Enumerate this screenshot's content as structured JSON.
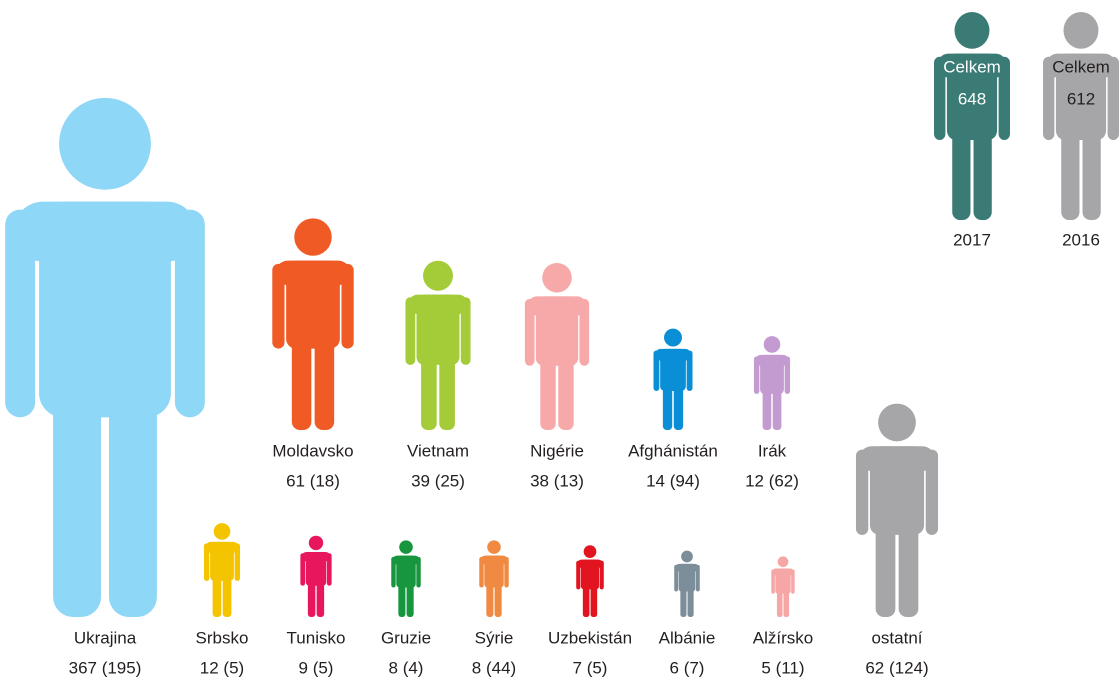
{
  "chart_data": {
    "type": "pictogram",
    "categories": [
      "Ukrajina",
      "Moldavsko",
      "Vietnam",
      "Nigérie",
      "Afghánistán",
      "Irák",
      "Srbsko",
      "Tunisko",
      "Gruzie",
      "Sýrie",
      "Uzbekistán",
      "Albánie",
      "Alžírsko",
      "ostatní"
    ],
    "series": [
      {
        "name": "2017",
        "color": "#3a7b76",
        "values": [
          367,
          61,
          39,
          38,
          14,
          12,
          12,
          9,
          8,
          8,
          7,
          6,
          5,
          62
        ]
      },
      {
        "name": "2016",
        "color": "#a6a6a8",
        "values": [
          195,
          18,
          25,
          13,
          94,
          62,
          5,
          5,
          4,
          44,
          5,
          7,
          11,
          124
        ]
      }
    ],
    "value_labels": [
      "367 (195)",
      "61 (18)",
      "39 (25)",
      "38 (13)",
      "14 (94)",
      "12 (62)",
      "12 (5)",
      "9 (5)",
      "8 (4)",
      "8 (44)",
      "7 (5)",
      "6 (7)",
      "5 (11)",
      "62 (124)"
    ],
    "colors": [
      "#8fd7f7",
      "#f05a24",
      "#a4cc38",
      "#f7a8a8",
      "#0a8fd6",
      "#c39bd1",
      "#f5c400",
      "#e8175d",
      "#17963e",
      "#f08a42",
      "#e2141f",
      "#7c8e99",
      "#f7a6a6",
      "#a6a6a8"
    ],
    "total_label": "Celkem",
    "totals": [
      648,
      612
    ]
  }
}
